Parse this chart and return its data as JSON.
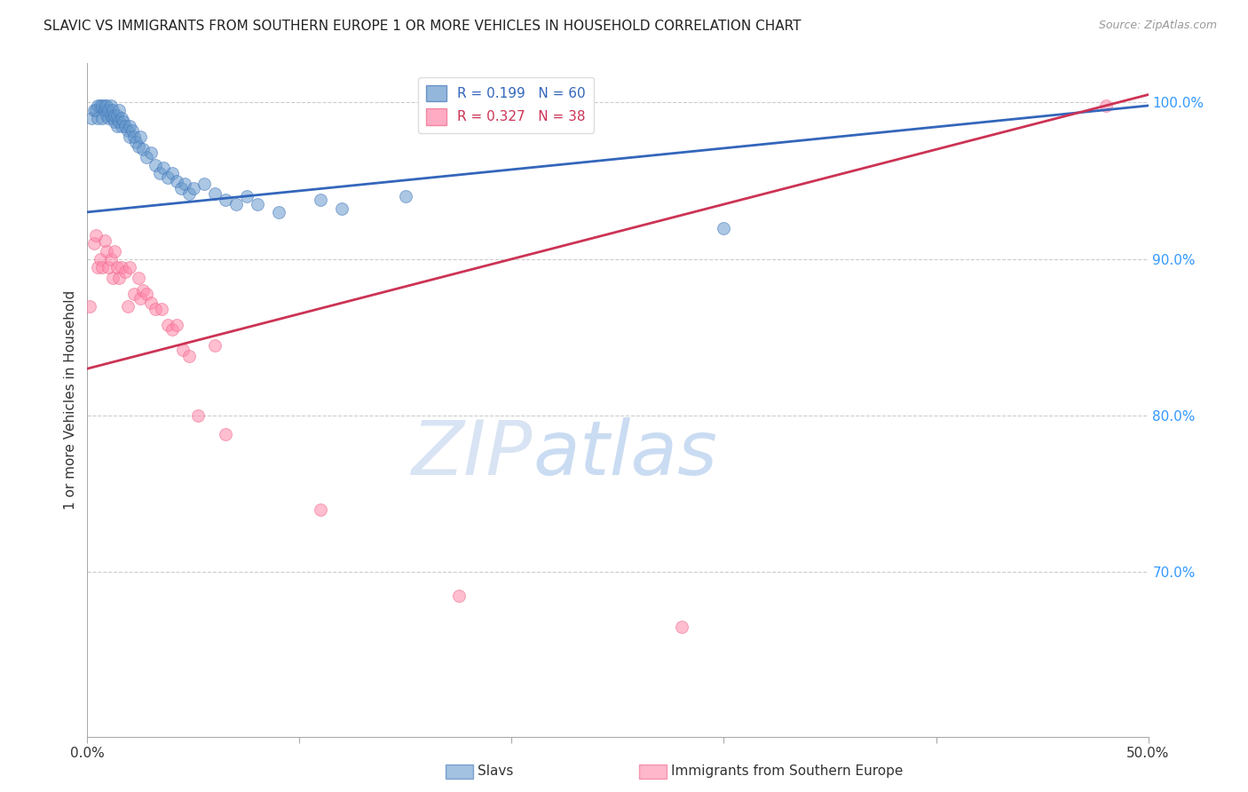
{
  "title": "SLAVIC VS IMMIGRANTS FROM SOUTHERN EUROPE 1 OR MORE VEHICLES IN HOUSEHOLD CORRELATION CHART",
  "source": "Source: ZipAtlas.com",
  "xlabel_ticks_pos": [
    0.0,
    0.1,
    0.2,
    0.3,
    0.4,
    0.5
  ],
  "xlabel_ticks_labels": [
    "0.0%",
    "",
    "",
    "",
    "",
    "50.0%"
  ],
  "ylabel_label": "1 or more Vehicles in Household",
  "xmin": 0.0,
  "xmax": 0.5,
  "ymin": 0.595,
  "ymax": 1.025,
  "right_ytick_vals": [
    0.7,
    0.8,
    0.9,
    1.0
  ],
  "right_ytick_labels": [
    "70.0%",
    "80.0%",
    "90.0%",
    "100.0%"
  ],
  "grid_ytick_vals": [
    0.7,
    0.8,
    0.9,
    1.0
  ],
  "slavs_color": "#6699CC",
  "immig_color": "#FF88AA",
  "slavs_edge": "#4477BB",
  "immig_edge": "#EE6688",
  "slavs_x": [
    0.002,
    0.003,
    0.004,
    0.005,
    0.005,
    0.006,
    0.007,
    0.007,
    0.008,
    0.008,
    0.009,
    0.009,
    0.01,
    0.01,
    0.011,
    0.011,
    0.012,
    0.012,
    0.013,
    0.013,
    0.014,
    0.014,
    0.015,
    0.015,
    0.016,
    0.016,
    0.017,
    0.018,
    0.019,
    0.02,
    0.02,
    0.021,
    0.022,
    0.023,
    0.024,
    0.025,
    0.026,
    0.028,
    0.03,
    0.032,
    0.034,
    0.036,
    0.038,
    0.04,
    0.042,
    0.044,
    0.046,
    0.048,
    0.05,
    0.055,
    0.06,
    0.065,
    0.07,
    0.075,
    0.08,
    0.09,
    0.11,
    0.12,
    0.15,
    0.3
  ],
  "slavs_y": [
    0.99,
    0.995,
    0.995,
    0.998,
    0.99,
    0.998,
    0.99,
    0.998,
    0.995,
    0.998,
    0.992,
    0.998,
    0.99,
    0.995,
    0.992,
    0.998,
    0.99,
    0.995,
    0.988,
    0.992,
    0.985,
    0.992,
    0.988,
    0.995,
    0.985,
    0.99,
    0.988,
    0.985,
    0.982,
    0.985,
    0.978,
    0.982,
    0.978,
    0.975,
    0.972,
    0.978,
    0.97,
    0.965,
    0.968,
    0.96,
    0.955,
    0.958,
    0.952,
    0.955,
    0.95,
    0.945,
    0.948,
    0.942,
    0.945,
    0.948,
    0.942,
    0.938,
    0.935,
    0.94,
    0.935,
    0.93,
    0.938,
    0.932,
    0.94,
    0.92
  ],
  "immig_x": [
    0.001,
    0.003,
    0.004,
    0.005,
    0.006,
    0.007,
    0.008,
    0.009,
    0.01,
    0.011,
    0.012,
    0.013,
    0.014,
    0.015,
    0.016,
    0.018,
    0.019,
    0.02,
    0.022,
    0.024,
    0.025,
    0.026,
    0.028,
    0.03,
    0.032,
    0.035,
    0.038,
    0.04,
    0.042,
    0.045,
    0.048,
    0.052,
    0.06,
    0.065,
    0.11,
    0.175,
    0.28,
    0.48
  ],
  "immig_y": [
    0.87,
    0.91,
    0.915,
    0.895,
    0.9,
    0.895,
    0.912,
    0.905,
    0.895,
    0.9,
    0.888,
    0.905,
    0.895,
    0.888,
    0.895,
    0.892,
    0.87,
    0.895,
    0.878,
    0.888,
    0.875,
    0.88,
    0.878,
    0.872,
    0.868,
    0.868,
    0.858,
    0.855,
    0.858,
    0.842,
    0.838,
    0.8,
    0.845,
    0.788,
    0.74,
    0.685,
    0.665,
    0.998
  ],
  "blue_trend_x": [
    0.0,
    0.5
  ],
  "blue_trend_y": [
    0.93,
    0.998
  ],
  "pink_trend_x": [
    0.0,
    0.5
  ],
  "pink_trend_y": [
    0.83,
    1.005
  ],
  "watermark_zip": "ZIP",
  "watermark_atlas": "atlas",
  "marker_size": 100,
  "alpha": 0.55,
  "grid_color": "#CCCCCC",
  "grid_style": "--",
  "background_color": "#FFFFFF",
  "legend_R1": "R = 0.199",
  "legend_N1": "N = 60",
  "legend_R2": "R = 0.327",
  "legend_N2": "N = 38"
}
